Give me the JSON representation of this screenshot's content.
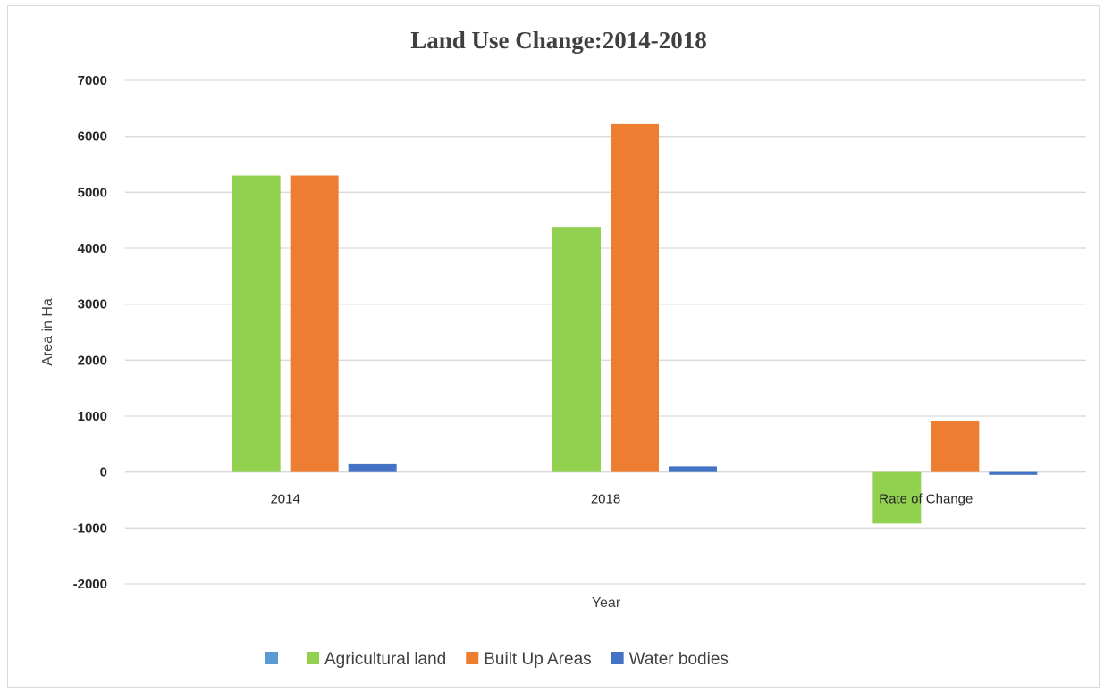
{
  "chart_data": {
    "type": "bar",
    "title": "Land Use Change:2014-2018",
    "xlabel": "Year",
    "ylabel": "Area in Ha",
    "ylim": [
      -2000,
      7000
    ],
    "yticks": [
      7000,
      6000,
      5000,
      4000,
      3000,
      2000,
      1000,
      0,
      -1000,
      -2000
    ],
    "categories": [
      "2014",
      "2018",
      "Rate of Change"
    ],
    "series": [
      {
        "name": "",
        "color": "#5b9bd5",
        "values": [
          0,
          0,
          0
        ]
      },
      {
        "name": "Agricultural land",
        "color": "#92d050",
        "values": [
          5300,
          4380,
          -920
        ]
      },
      {
        "name": "Built Up Areas",
        "color": "#ed7d31",
        "values": [
          5300,
          6220,
          920
        ]
      },
      {
        "name": "Water bodies",
        "color": "#4472c4",
        "values": [
          140,
          100,
          -50
        ]
      }
    ],
    "grid": true,
    "legend": "bottom"
  }
}
